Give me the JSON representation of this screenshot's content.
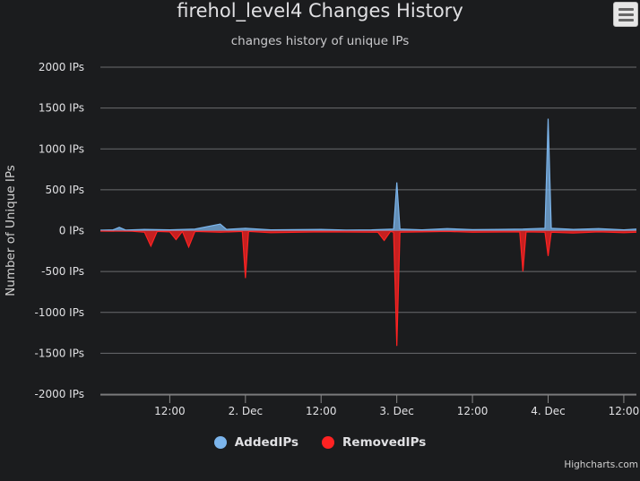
{
  "chart_data": {
    "type": "area",
    "title": "firehol_level4 Changes History",
    "subtitle": "changes history of unique IPs",
    "ylabel": "Number of Unique IPs",
    "xlabel": "",
    "ylim": [
      -2000,
      2000
    ],
    "y_ticks": [
      "2000 IPs",
      "1500 IPs",
      "1000 IPs",
      "500 IPs",
      "0 IPs",
      "-500 IPs",
      "-1000 IPs",
      "-1500 IPs",
      "-2000 IPs"
    ],
    "y_tick_values": [
      2000,
      1500,
      1000,
      500,
      0,
      -500,
      -1000,
      -1500,
      -2000
    ],
    "x_ticks": [
      "12:00",
      "2. Dec",
      "12:00",
      "3. Dec",
      "12:00",
      "4. Dec",
      "12:00"
    ],
    "x_tick_values": [
      12,
      24,
      36,
      48,
      60,
      72,
      84
    ],
    "x_range_hours": [
      1,
      86
    ],
    "grid": true,
    "legend_position": "bottom-center",
    "series": [
      {
        "name": "AddedIPs",
        "color": "#7cb5ec",
        "points": [
          [
            1,
            5
          ],
          [
            3,
            10
          ],
          [
            4,
            40
          ],
          [
            5,
            8
          ],
          [
            8,
            15
          ],
          [
            12,
            10
          ],
          [
            16,
            20
          ],
          [
            20,
            80
          ],
          [
            21,
            15
          ],
          [
            24,
            30
          ],
          [
            28,
            10
          ],
          [
            32,
            12
          ],
          [
            36,
            15
          ],
          [
            40,
            8
          ],
          [
            44,
            10
          ],
          [
            47.5,
            20
          ],
          [
            48,
            590
          ],
          [
            48.5,
            20
          ],
          [
            52,
            10
          ],
          [
            56,
            25
          ],
          [
            60,
            12
          ],
          [
            64,
            15
          ],
          [
            68,
            20
          ],
          [
            71.5,
            30
          ],
          [
            72,
            1370
          ],
          [
            72.5,
            30
          ],
          [
            76,
            15
          ],
          [
            80,
            25
          ],
          [
            84,
            10
          ],
          [
            86,
            20
          ]
        ]
      },
      {
        "name": "RemovedIPs",
        "color": "#ff2222",
        "points": [
          [
            1,
            -5
          ],
          [
            6,
            -8
          ],
          [
            8,
            -20
          ],
          [
            9,
            -190
          ],
          [
            10,
            -10
          ],
          [
            12,
            -15
          ],
          [
            13,
            -110
          ],
          [
            14,
            -10
          ],
          [
            15,
            -200
          ],
          [
            16,
            -10
          ],
          [
            20,
            -20
          ],
          [
            23.5,
            -10
          ],
          [
            24,
            -580
          ],
          [
            24.5,
            -10
          ],
          [
            28,
            -25
          ],
          [
            36,
            -15
          ],
          [
            45,
            -20
          ],
          [
            46,
            -120
          ],
          [
            47,
            -10
          ],
          [
            47.5,
            -20
          ],
          [
            48,
            -1410
          ],
          [
            48.5,
            -20
          ],
          [
            52,
            -15
          ],
          [
            56,
            -10
          ],
          [
            60,
            -20
          ],
          [
            67.5,
            -15
          ],
          [
            68,
            -500
          ],
          [
            68.5,
            -15
          ],
          [
            71.5,
            -20
          ],
          [
            72,
            -310
          ],
          [
            72.5,
            -20
          ],
          [
            76,
            -30
          ],
          [
            80,
            -15
          ],
          [
            84,
            -25
          ],
          [
            86,
            -20
          ]
        ]
      }
    ]
  },
  "legend": {
    "items": [
      {
        "label": "AddedIPs",
        "color": "#7cb5ec"
      },
      {
        "label": "RemovedIPs",
        "color": "#ff2222"
      }
    ]
  },
  "credits": "Highcharts.com",
  "menu": {
    "icon": "hamburger-menu-icon"
  }
}
